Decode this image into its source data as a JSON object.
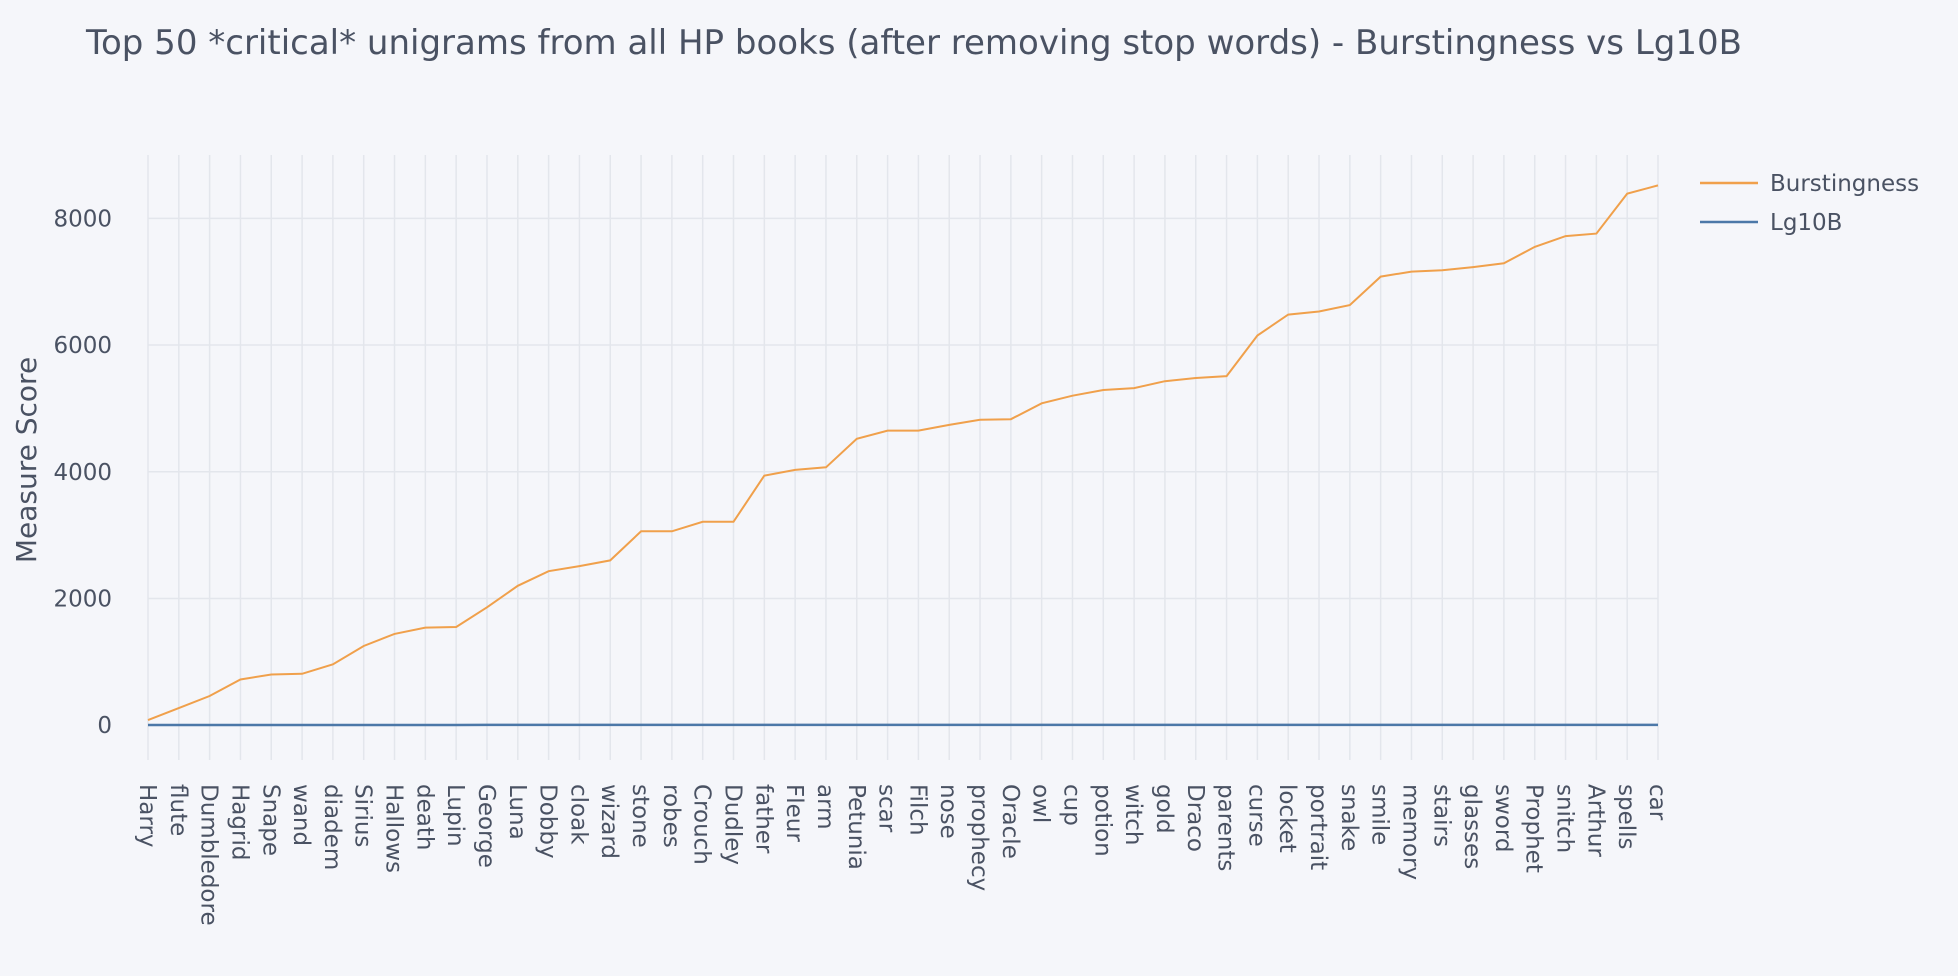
{
  "chart_data": {
    "type": "line",
    "title": "Top 50 *critical* unigrams from all HP books (after removing stop words) - Burstingness vs Lg10B",
    "xlabel": "",
    "ylabel": "Measure Score",
    "ylim": [
      -550,
      9000
    ],
    "yticks": [
      0,
      2000,
      4000,
      6000,
      8000
    ],
    "grid": true,
    "legend_position": "top-right",
    "categories": [
      "Harry",
      "flute",
      "Dumbledore",
      "Hagrid",
      "Snape",
      "wand",
      "diadem",
      "Sirius",
      "Hallows",
      "death",
      "Lupin",
      "George",
      "Luna",
      "Dobby",
      "cloak",
      "wizard",
      "stone",
      "robes",
      "Crouch",
      "Dudley",
      "father",
      "Fleur",
      "arm",
      "Petunia",
      "scar",
      "Filch",
      "nose",
      "prophecy",
      "Oracle",
      "owl",
      "cup",
      "potion",
      "witch",
      "gold",
      "Draco",
      "parents",
      "curse",
      "locket",
      "portrait",
      "snake",
      "smile",
      "memory",
      "stairs",
      "glasses",
      "sword",
      "Prophet",
      "snitch",
      "Arthur",
      "spells",
      "car"
    ],
    "series": [
      {
        "name": "Burstingness",
        "color": "#f0a04b",
        "values": [
          80,
          270,
          460,
          720,
          800,
          810,
          960,
          1250,
          1440,
          1540,
          1550,
          1860,
          2200,
          2430,
          2510,
          2600,
          3060,
          3060,
          3210,
          3210,
          3940,
          4030,
          4070,
          4520,
          4650,
          4650,
          4740,
          4820,
          4830,
          5080,
          5200,
          5290,
          5320,
          5430,
          5480,
          5510,
          6150,
          6480,
          6530,
          6630,
          7080,
          7160,
          7180,
          7230,
          7290,
          7550,
          7720,
          7760,
          8390,
          8520
        ]
      },
      {
        "name": "Lg10B",
        "color": "#4c78a8",
        "values": [
          1.9,
          2.4,
          2.7,
          2.9,
          2.9,
          2.9,
          3.0,
          3.1,
          3.2,
          3.2,
          3.2,
          3.3,
          3.3,
          3.4,
          3.4,
          3.4,
          3.5,
          3.5,
          3.5,
          3.5,
          3.6,
          3.6,
          3.6,
          3.7,
          3.7,
          3.7,
          3.7,
          3.7,
          3.7,
          3.7,
          3.7,
          3.7,
          3.7,
          3.7,
          3.7,
          3.7,
          3.8,
          3.8,
          3.8,
          3.8,
          3.9,
          3.9,
          3.9,
          3.9,
          3.9,
          3.9,
          3.9,
          3.9,
          3.9,
          3.9
        ]
      }
    ]
  }
}
